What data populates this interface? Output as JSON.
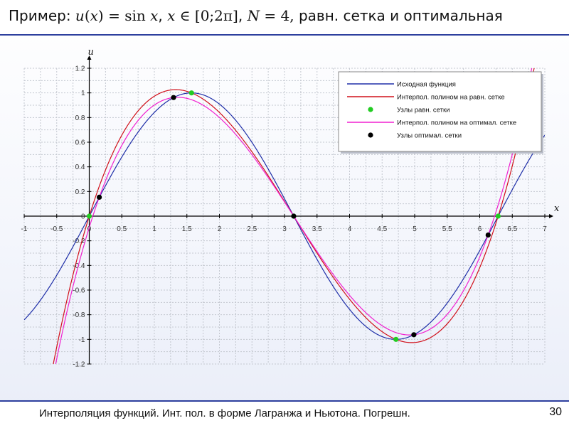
{
  "slide": {
    "title_prefix": "Пример: ",
    "title_u": "u",
    "title_lp": "(",
    "title_x1": "x",
    "title_rp": ")",
    "title_eq": " = sin ",
    "title_x2": "x",
    "title_comma1": ", ",
    "title_x3": "x",
    "title_in": " ∈ ",
    "title_interval": "[0;2π]",
    "title_comma2": ", ",
    "title_N": "N",
    "title_N_eq": " = 4, ",
    "title_tail": "равн. сетка и оптимальная",
    "footer": "Интерполяция функций. Инт. пол. в форме Лагранжа и Ньютона. Погрешн.",
    "page_number": "30"
  },
  "colors": {
    "exact": "#1f2fa8",
    "uniform_poly": "#d0101a",
    "uniform_nodes": "#22cc22",
    "optimal_poly": "#f020d0",
    "optimal_nodes": "#000000",
    "grid": "#c4c8d0",
    "axis": "#000000",
    "title_rule": "#2d3f9e"
  },
  "chart_data": {
    "type": "line",
    "xlabel": "x",
    "ylabel": "u",
    "xlim": [
      -1,
      7
    ],
    "ylim": [
      -1.2,
      1.2
    ],
    "xticks": [
      -1,
      -0.5,
      0,
      0.5,
      1,
      1.5,
      2,
      2.5,
      3,
      3.5,
      4,
      4.5,
      5,
      5.5,
      6,
      6.5,
      7
    ],
    "xtick_labels": [
      "-1",
      "-0.5",
      "0",
      "0.5",
      "1",
      "1.5",
      "2",
      "2.5",
      "3",
      "3.5",
      "4",
      "4.5",
      "5",
      "5.5",
      "6",
      "6.5",
      "7"
    ],
    "yticks": [
      -1.2,
      -1,
      -0.8,
      -0.6,
      -0.4,
      -0.2,
      0,
      0.2,
      0.4,
      0.6,
      0.8,
      1,
      1.2
    ],
    "ytick_labels": [
      "-1.2",
      "-1",
      "-0.8",
      "-0.6",
      "-0.4",
      "-0.2",
      "0",
      "0.2",
      "0.4",
      "0.6",
      "0.8",
      "1",
      "1.2"
    ],
    "grid": true,
    "legend_position": "top-right",
    "series": [
      {
        "name": "Исходная функция",
        "kind": "line",
        "function": "sin(x)",
        "x_range": [
          -1,
          7
        ]
      },
      {
        "name": "Интерпол. полином на равн. сетке",
        "kind": "line",
        "nodes_x": [
          0,
          1.5708,
          3.1416,
          4.7124,
          6.2832
        ],
        "nodes_y": [
          0,
          1,
          0,
          -1,
          0
        ]
      },
      {
        "name": "Узлы равн. сетки",
        "kind": "points",
        "x": [
          0,
          1.5708,
          3.1416,
          4.7124,
          6.2832
        ],
        "y": [
          0,
          1,
          0,
          -1,
          0
        ]
      },
      {
        "name": "Интерпол. полином на оптимал. сетке",
        "kind": "line",
        "nodes_x": [
          0.1541,
          1.2953,
          3.1416,
          4.9879,
          6.1291
        ],
        "nodes_y": [
          0.1535,
          0.9625,
          0,
          -0.9625,
          -0.1535
        ]
      },
      {
        "name": "Узлы оптимал. сетки",
        "kind": "points",
        "x": [
          0.1541,
          1.2953,
          3.1416,
          4.9879,
          6.1291
        ],
        "y": [
          0.1535,
          0.9625,
          0,
          -0.9625,
          -0.1535
        ]
      }
    ]
  }
}
